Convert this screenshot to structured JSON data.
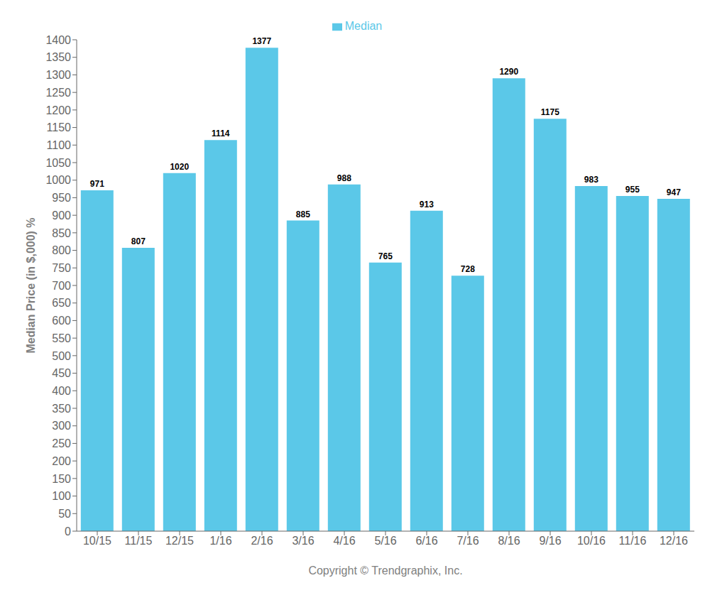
{
  "chart_data": {
    "type": "bar",
    "categories": [
      "10/15",
      "11/15",
      "12/15",
      "1/16",
      "2/16",
      "3/16",
      "4/16",
      "5/16",
      "6/16",
      "7/16",
      "8/16",
      "9/16",
      "10/16",
      "11/16",
      "12/16"
    ],
    "series": [
      {
        "name": "Median",
        "color": "#5BC8E8",
        "values": [
          971,
          807,
          1020,
          1114,
          1377,
          885,
          988,
          765,
          913,
          728,
          1290,
          1175,
          983,
          955,
          947
        ]
      }
    ],
    "ylabel": "Median Price (in $,000) %",
    "xlabel": "Copyright © Trendgraphix, Inc.",
    "ylim": [
      0,
      1400
    ],
    "yticks": [
      0,
      50,
      100,
      150,
      200,
      250,
      300,
      350,
      400,
      450,
      500,
      550,
      600,
      650,
      700,
      750,
      800,
      850,
      900,
      950,
      1000,
      1050,
      1100,
      1150,
      1200,
      1250,
      1300,
      1350,
      1400
    ],
    "data_labels": true,
    "legend": "top",
    "grid": false
  }
}
